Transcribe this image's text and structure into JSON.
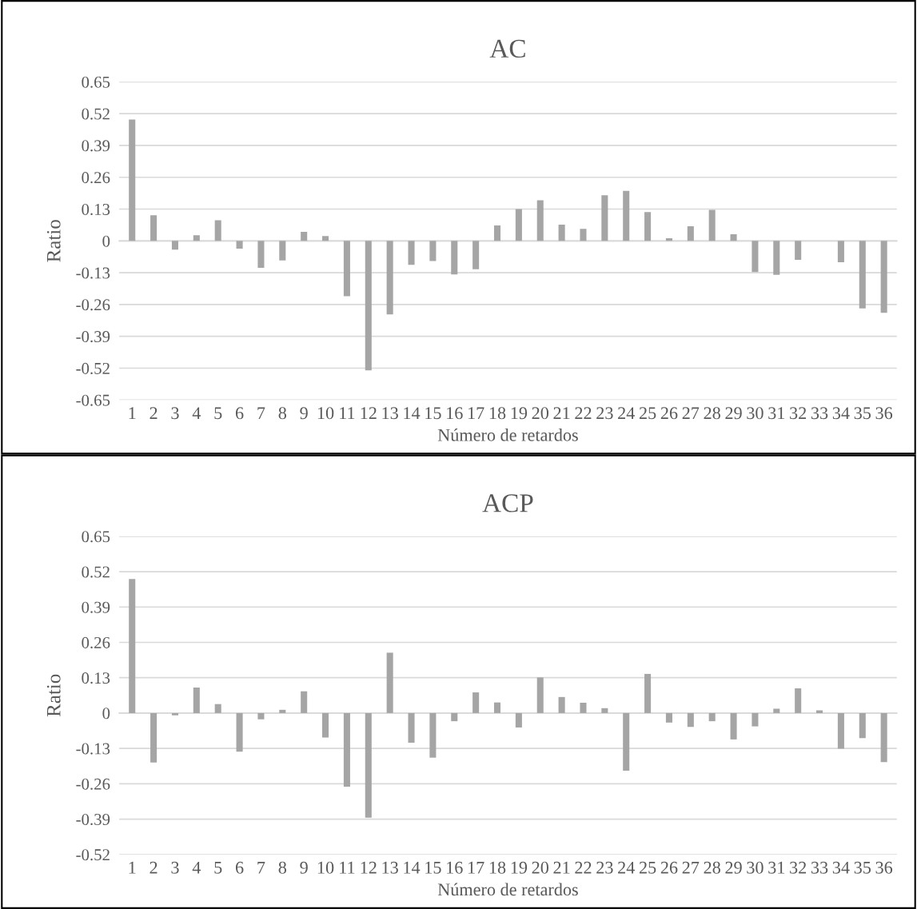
{
  "chart_data": [
    {
      "type": "bar",
      "title": "AC",
      "xlabel": "Número de retardos",
      "ylabel": "Ratio",
      "categories": [
        "1",
        "2",
        "3",
        "4",
        "5",
        "6",
        "7",
        "8",
        "9",
        "10",
        "11",
        "12",
        "13",
        "14",
        "15",
        "16",
        "17",
        "18",
        "19",
        "20",
        "21",
        "22",
        "23",
        "24",
        "25",
        "26",
        "27",
        "28",
        "29",
        "30",
        "31",
        "32",
        "33",
        "34",
        "35",
        "36"
      ],
      "series": [
        {
          "color": "#a5a5a5",
          "values": [
            0.496,
            0.105,
            -0.036,
            0.023,
            0.084,
            -0.032,
            -0.11,
            -0.08,
            0.037,
            0.02,
            -0.226,
            -0.529,
            -0.3,
            -0.098,
            -0.082,
            -0.137,
            -0.116,
            0.063,
            0.13,
            0.166,
            0.066,
            0.049,
            0.186,
            0.204,
            0.118,
            0.011,
            0.06,
            0.127,
            0.027,
            -0.127,
            -0.139,
            -0.077,
            0,
            -0.087,
            -0.276,
            -0.294
          ]
        }
      ],
      "ylim": [
        -0.65,
        0.65
      ],
      "yticks": [
        -0.65,
        -0.52,
        -0.39,
        -0.26,
        -0.13,
        0,
        0.13,
        0.26,
        0.39,
        0.52,
        0.65
      ],
      "grid": "y",
      "legend": false
    },
    {
      "type": "bar",
      "title": "ACP",
      "xlabel": "Número de retardos",
      "ylabel": "Ratio",
      "categories": [
        "1",
        "2",
        "3",
        "4",
        "5",
        "6",
        "7",
        "8",
        "9",
        "10",
        "11",
        "12",
        "13",
        "14",
        "15",
        "16",
        "17",
        "18",
        "19",
        "20",
        "21",
        "22",
        "23",
        "24",
        "25",
        "26",
        "27",
        "28",
        "29",
        "30",
        "31",
        "32",
        "33",
        "34",
        "35",
        "36"
      ],
      "series": [
        {
          "color": "#a5a5a5",
          "values": [
            0.493,
            -0.182,
            -0.008,
            0.094,
            0.033,
            -0.142,
            -0.023,
            0.012,
            0.08,
            -0.09,
            -0.271,
            -0.385,
            0.222,
            -0.109,
            -0.164,
            -0.03,
            0.076,
            0.039,
            -0.053,
            0.131,
            0.059,
            0.038,
            0.018,
            -0.212,
            0.144,
            -0.035,
            -0.051,
            -0.03,
            -0.097,
            -0.049,
            0.016,
            0.091,
            0.01,
            -0.131,
            -0.092,
            -0.18
          ]
        }
      ],
      "ylim": [
        -0.52,
        0.65
      ],
      "yticks": [
        -0.52,
        -0.39,
        -0.26,
        -0.13,
        0,
        0.13,
        0.26,
        0.39,
        0.52,
        0.65
      ],
      "grid": "y",
      "legend": false
    }
  ]
}
